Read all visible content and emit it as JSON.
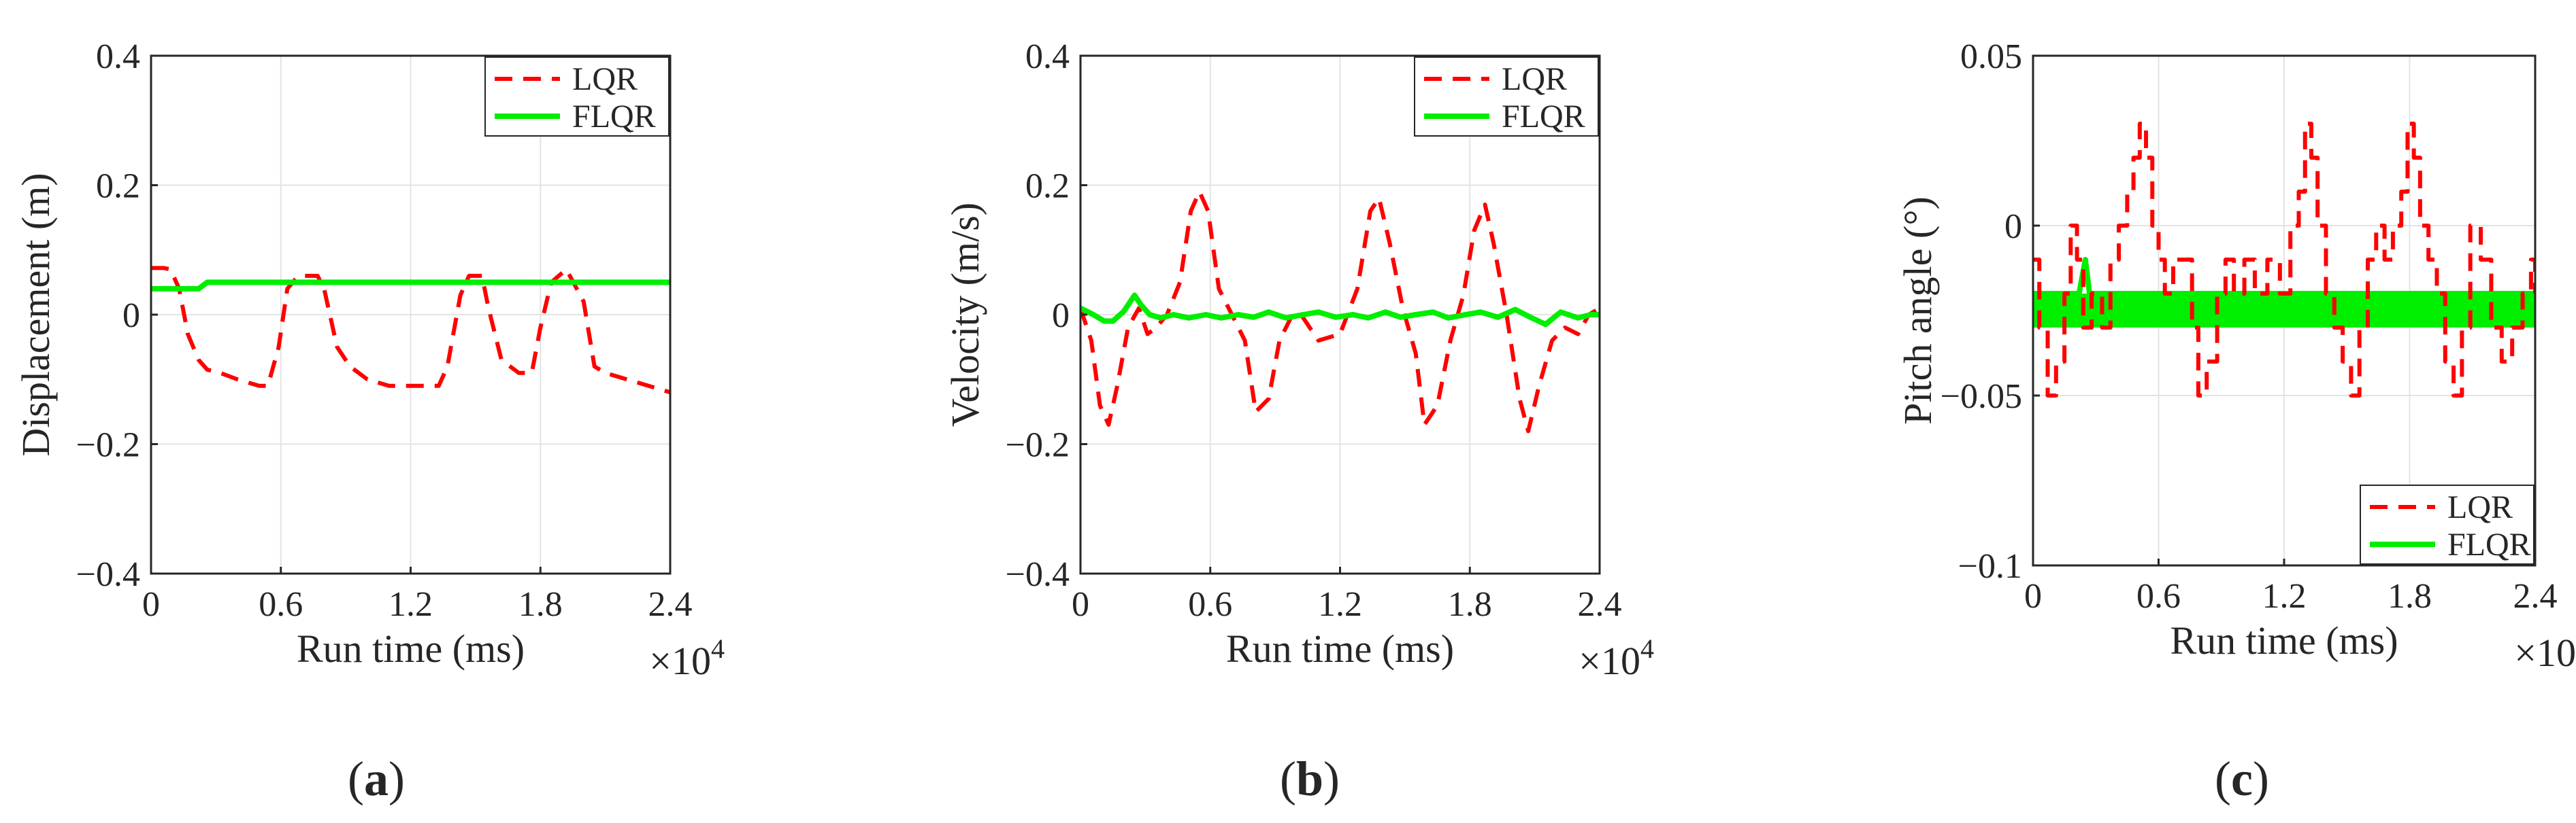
{
  "figure": {
    "captions": [
      {
        "open": "(",
        "letter": "a",
        "close": ")"
      },
      {
        "open": "(",
        "letter": "b",
        "close": ")"
      },
      {
        "open": "(",
        "letter": "c",
        "close": ")"
      }
    ],
    "x_multiplier": {
      "base": "×10",
      "exponent": "4"
    }
  },
  "colors": {
    "lqr": "#ff0000",
    "flqr": "#00ee00",
    "grid": "#e3e3e3",
    "axis": "#262626"
  },
  "chart_data": [
    {
      "id": "a",
      "type": "line",
      "title": "",
      "xlabel": "Run time (ms)",
      "ylabel": "Displacement (m)",
      "xlim": [
        0,
        24000
      ],
      "ylim": [
        -0.4,
        0.4
      ],
      "xticks": [
        0,
        6000,
        12000,
        18000,
        24000
      ],
      "xtick_labels": [
        "0",
        "0.6",
        "1.2",
        "1.8",
        "2.4"
      ],
      "yticks": [
        -0.4,
        -0.2,
        0,
        0.2,
        0.4
      ],
      "ytick_labels": [
        "−0.4",
        "−0.2",
        "0",
        "0.2",
        "0.4"
      ],
      "grid": true,
      "legend_position": "top-right",
      "series": [
        {
          "name": "LQR",
          "style": "dashed",
          "color": "#ff0000",
          "step": false,
          "x": [
            0,
            600,
            900,
            1300,
            1700,
            2200,
            2600,
            3200,
            4000,
            5000,
            5400,
            5900,
            6300,
            6800,
            7700,
            8000,
            8600,
            9200,
            10000,
            11000,
            12000,
            13300,
            13700,
            14300,
            14700,
            15300,
            15600,
            16200,
            17000,
            17600,
            18000,
            18500,
            19200,
            20000,
            20500,
            21000,
            22000,
            23000,
            24000
          ],
          "y": [
            0.072,
            0.072,
            0.07,
            0.04,
            -0.03,
            -0.07,
            -0.085,
            -0.09,
            -0.1,
            -0.11,
            -0.11,
            -0.05,
            0.04,
            0.06,
            0.06,
            0.04,
            -0.05,
            -0.08,
            -0.1,
            -0.11,
            -0.11,
            -0.11,
            -0.08,
            0.03,
            0.06,
            0.06,
            0.01,
            -0.07,
            -0.09,
            -0.09,
            -0.02,
            0.05,
            0.07,
            0.02,
            -0.08,
            -0.09,
            -0.1,
            -0.11,
            -0.12
          ]
        },
        {
          "name": "FLQR",
          "style": "solid",
          "color": "#00ee00",
          "step": false,
          "x": [
            0,
            500,
            2200,
            2600,
            24000
          ],
          "y": [
            0.04,
            0.04,
            0.04,
            0.05,
            0.05
          ]
        }
      ]
    },
    {
      "id": "b",
      "type": "line",
      "title": "",
      "xlabel": "Run time (ms)",
      "ylabel": "Velocity (m/s)",
      "xlim": [
        0,
        24000
      ],
      "ylim": [
        -0.4,
        0.4
      ],
      "xticks": [
        0,
        6000,
        12000,
        18000,
        24000
      ],
      "xtick_labels": [
        "0",
        "0.6",
        "1.2",
        "1.8",
        "2.4"
      ],
      "yticks": [
        -0.4,
        -0.2,
        0,
        0.2,
        0.4
      ],
      "ytick_labels": [
        "−0.4",
        "−0.2",
        "0",
        "0.2",
        "0.4"
      ],
      "grid": true,
      "legend_position": "top-right",
      "series": [
        {
          "name": "LQR",
          "style": "dashed",
          "color": "#ff0000",
          "step": false,
          "x": [
            0,
            500,
            900,
            1300,
            1700,
            2200,
            2700,
            3100,
            3500,
            4000,
            4600,
            5100,
            5500,
            5900,
            6400,
            7000,
            7600,
            8100,
            8700,
            9200,
            9800,
            10200,
            11000,
            12000,
            12800,
            13400,
            13800,
            14300,
            14900,
            15500,
            15900,
            16500,
            17100,
            17700,
            18200,
            18700,
            19100,
            19700,
            20300,
            20700,
            21200,
            21800,
            22400,
            23000,
            23500,
            24000
          ],
          "y": [
            0.01,
            -0.04,
            -0.14,
            -0.17,
            -0.11,
            -0.02,
            0.01,
            -0.03,
            -0.02,
            0.0,
            0.05,
            0.16,
            0.19,
            0.16,
            0.04,
            0.0,
            -0.04,
            -0.15,
            -0.13,
            -0.04,
            0.0,
            0.0,
            -0.04,
            -0.03,
            0.04,
            0.16,
            0.18,
            0.11,
            0.01,
            -0.06,
            -0.17,
            -0.14,
            -0.04,
            0.03,
            0.13,
            0.17,
            0.11,
            0.0,
            -0.13,
            -0.18,
            -0.11,
            -0.04,
            -0.02,
            -0.03,
            0.0,
            0.01
          ]
        },
        {
          "name": "FLQR",
          "style": "solid",
          "color": "#00ee00",
          "step": false,
          "x": [
            0,
            600,
            1100,
            1500,
            2000,
            2500,
            2800,
            3200,
            3700,
            4300,
            5000,
            5800,
            6500,
            7300,
            8000,
            8700,
            9500,
            10300,
            11000,
            11800,
            12600,
            13300,
            14100,
            14800,
            15500,
            16300,
            17000,
            17800,
            18500,
            19300,
            20100,
            20800,
            21500,
            22200,
            23000,
            23600,
            24000
          ],
          "y": [
            0.01,
            0.0,
            -0.01,
            -0.01,
            0.005,
            0.03,
            0.015,
            0.0,
            -0.005,
            0.0,
            -0.005,
            0.0,
            -0.005,
            0.0,
            -0.004,
            0.004,
            -0.005,
            0.0,
            0.004,
            -0.004,
            0.0,
            -0.005,
            0.004,
            -0.004,
            0.0,
            0.004,
            -0.005,
            0.0,
            0.004,
            -0.004,
            0.008,
            -0.004,
            -0.015,
            0.004,
            -0.005,
            0.0,
            0.0
          ]
        }
      ]
    },
    {
      "id": "c",
      "type": "line",
      "title": "",
      "xlabel": "Run time (ms)",
      "ylabel": "Pitch angle (°)",
      "xlim": [
        0,
        24000
      ],
      "ylim": [
        -0.1,
        0.05
      ],
      "xticks": [
        0,
        6000,
        12000,
        18000,
        24000
      ],
      "xtick_labels": [
        "0",
        "0.6",
        "1.2",
        "1.8",
        "2.4"
      ],
      "yticks": [
        -0.1,
        -0.05,
        0,
        0.05
      ],
      "ytick_labels": [
        "−0.1",
        "−0.05",
        "0",
        "0.05"
      ],
      "grid": true,
      "legend_position": "bottom-right",
      "series": [
        {
          "name": "LQR",
          "style": "dashed",
          "color": "#ff0000",
          "step": true,
          "x": [
            0,
            300,
            700,
            1100,
            1500,
            1800,
            2100,
            2400,
            2800,
            3300,
            3700,
            4100,
            4500,
            4800,
            5100,
            5400,
            5700,
            6000,
            6300,
            6700,
            7200,
            7600,
            7900,
            8300,
            8800,
            9200,
            9600,
            10100,
            10600,
            11200,
            11800,
            12300,
            12700,
            13000,
            13300,
            13600,
            14000,
            14400,
            14800,
            15200,
            15600,
            16000,
            16400,
            16800,
            17200,
            17600,
            17900,
            18200,
            18500,
            18900,
            19300,
            19700,
            20100,
            20500,
            20900,
            21400,
            21900,
            22400,
            22900,
            23400,
            23800,
            24000
          ],
          "y": [
            -0.01,
            -0.03,
            -0.05,
            -0.04,
            -0.02,
            0.0,
            -0.01,
            -0.03,
            -0.02,
            -0.03,
            -0.01,
            0.0,
            0.01,
            0.02,
            0.03,
            0.02,
            0.0,
            -0.01,
            -0.02,
            -0.01,
            -0.01,
            -0.03,
            -0.05,
            -0.04,
            -0.02,
            -0.01,
            -0.02,
            -0.01,
            -0.02,
            -0.01,
            -0.02,
            0.0,
            0.01,
            0.03,
            0.02,
            0.0,
            -0.02,
            -0.03,
            -0.04,
            -0.05,
            -0.03,
            -0.01,
            0.0,
            -0.01,
            0.0,
            0.01,
            0.03,
            0.02,
            0.0,
            -0.01,
            -0.02,
            -0.04,
            -0.05,
            -0.03,
            0.0,
            -0.01,
            -0.03,
            -0.04,
            -0.03,
            -0.02,
            -0.01,
            -0.02
          ]
        },
        {
          "name": "FLQR",
          "style": "solid",
          "color": "#00ee00",
          "step": false,
          "x": [
            0,
            1800,
            2200,
            2500,
            2700,
            4200,
            4700,
            24000
          ],
          "y": [
            -0.02,
            -0.02,
            -0.02,
            -0.01,
            -0.02,
            -0.02,
            -0.02,
            -0.02
          ],
          "band": {
            "x_start": 0,
            "x_end": 24000,
            "y_low": -0.03,
            "y_high": -0.02
          }
        }
      ]
    }
  ]
}
